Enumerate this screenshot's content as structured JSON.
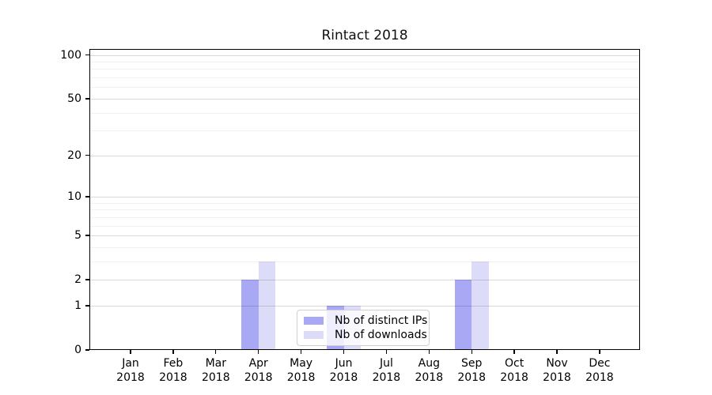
{
  "chart_data": {
    "type": "bar",
    "title": "Rintact 2018",
    "categories": [
      "Jan",
      "Feb",
      "Mar",
      "Apr",
      "May",
      "Jun",
      "Jul",
      "Aug",
      "Sep",
      "Oct",
      "Nov",
      "Dec"
    ],
    "category_year": "2018",
    "series": [
      {
        "name": "Nb of distinct IPs",
        "color": "#a8a8f4",
        "values": [
          0,
          0,
          0,
          2,
          0,
          1,
          0,
          0,
          2,
          0,
          0,
          0
        ]
      },
      {
        "name": "Nb of downloads",
        "color": "#dcdcf9",
        "values": [
          0,
          0,
          0,
          3,
          0,
          1,
          0,
          0,
          3,
          0,
          0,
          0
        ]
      }
    ],
    "yscale": "log10(1+y)",
    "y_major_ticks": [
      0,
      1,
      2,
      5,
      10,
      20,
      50,
      100
    ],
    "y_minor_ticks": [
      3,
      4,
      6,
      7,
      8,
      9,
      30,
      40,
      60,
      70,
      80,
      90
    ],
    "ylim": [
      0,
      110
    ],
    "xlabel": "",
    "ylabel": "",
    "grid": "horizontal major and minor, drawn over bars",
    "legend_position": "lower center"
  },
  "colors": {
    "bar_distinct_ips": "#a8a8f4",
    "bar_downloads": "#dcdcf9",
    "grid_major": "rgba(0,0,0,0.15)",
    "grid_minor": "rgba(0,0,0,0.05)",
    "spine": "#000000",
    "text": "#000000",
    "background": "#ffffff"
  }
}
